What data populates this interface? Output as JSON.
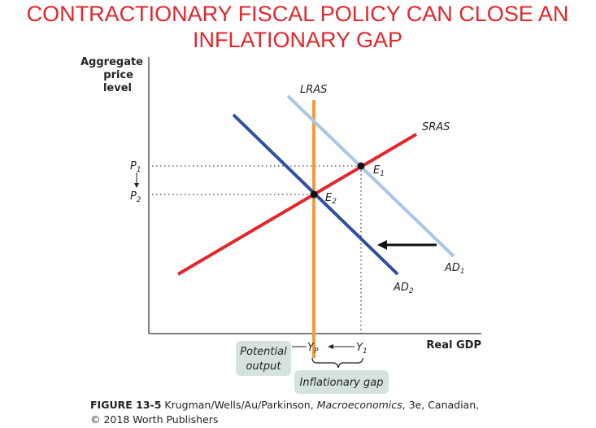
{
  "title": {
    "lines": [
      "CONTRACTIONARY FISCAL POLICY CAN CLOSE AN",
      "INFLATIONARY GAP"
    ]
  },
  "axes": {
    "y_label": [
      "Aggregate",
      "price",
      "level"
    ],
    "x_label": "Real GDP"
  },
  "curves": {
    "lras": "LRAS",
    "sras": "SRAS",
    "ad1": {
      "name": "AD",
      "sub": "1"
    },
    "ad2": {
      "name": "AD",
      "sub": "2"
    }
  },
  "points": {
    "e1": {
      "name": "E",
      "sub": "1"
    },
    "e2": {
      "name": "E",
      "sub": "2"
    }
  },
  "y_marks": {
    "p1": {
      "name": "P",
      "sub": "1"
    },
    "p2": {
      "name": "P",
      "sub": "2"
    }
  },
  "x_marks": {
    "yp": {
      "name": "Y",
      "sub": "P"
    },
    "y1": {
      "name": "Y",
      "sub": "1"
    }
  },
  "notes": {
    "potential_output": [
      "Potential",
      "output"
    ],
    "inflationary_gap": "Inflationary gap"
  },
  "caption": {
    "figure": "FIGURE 13-5",
    "authors": "Krugman/Wells/Au/Parkinson,",
    "book": "Macroeconomics",
    "edition": ", 3e, Canadian,",
    "copyright": "© 2018 Worth Publishers"
  }
}
